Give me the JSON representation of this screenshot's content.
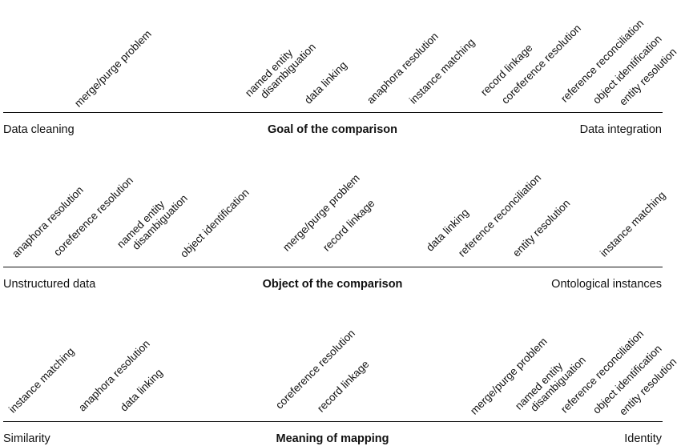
{
  "panels": [
    {
      "title": "Goal of the comparison",
      "left_label": "Data cleaning",
      "right_label": "Data integration",
      "terms": [
        "merge/purge problem",
        "named entity disambiguation",
        "data linking",
        "anaphora resolution",
        "instance matching",
        "record linkage",
        "coreference resolution",
        "reference reconciliation",
        "object identification",
        "entity resolution"
      ]
    },
    {
      "title": "Object of the comparison",
      "left_label": "Unstructured data",
      "right_label": "Ontological instances",
      "terms": [
        "anaphora resolution",
        "coreference resolution",
        "named entity disambiguation",
        "object identification",
        "merge/purge problem",
        "record linkage",
        "data linking",
        "reference reconciliation",
        "entity resolution",
        "instance matching"
      ]
    },
    {
      "title": "Meaning of mapping",
      "left_label": "Similarity",
      "right_label": "Identity",
      "terms": [
        "instance matching",
        "anaphora resolution",
        "data linking",
        "coreference resolution",
        "record linkage",
        "merge/purge problem",
        "named entity disambiguation",
        "reference reconciliation",
        "object identification",
        "entity resolution"
      ]
    }
  ]
}
